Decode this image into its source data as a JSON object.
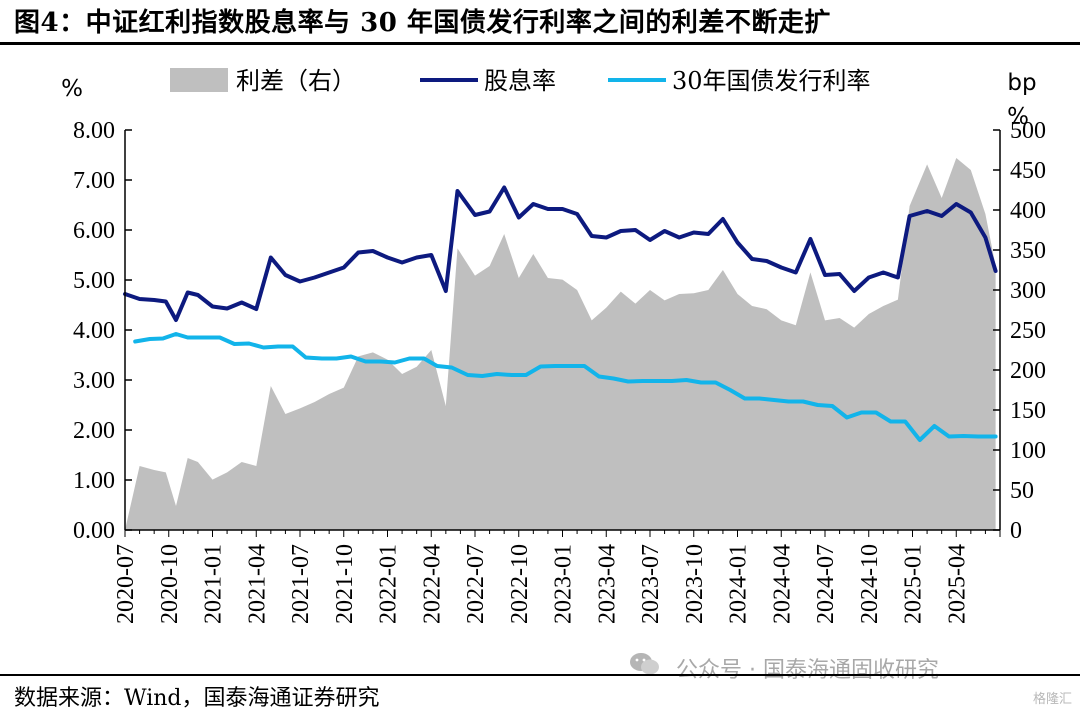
{
  "title": "图4：中证红利指数股息率与 30 年国债发行利率之间的利差不断走扩",
  "source": "数据来源：Wind，国泰海通证券研究",
  "watermark": "公众号 · 国泰海通固收研究",
  "corner_mark": "格隆汇",
  "colors": {
    "spread_fill": "#bfbfbf",
    "dividend_line": "#0d1a7f",
    "bond_line": "#12b4ea",
    "axis": "#000000"
  },
  "chart_data": {
    "type": "line",
    "left_unit": "%",
    "right_unit": "bp",
    "right_unit_sub": "%",
    "ylim_left": [
      0,
      8
    ],
    "ylim_right": [
      0,
      500
    ],
    "yticks_left": [
      "0.00",
      "1.00",
      "2.00",
      "3.00",
      "4.00",
      "5.00",
      "6.00",
      "7.00",
      "8.00"
    ],
    "yticks_right": [
      "0",
      "50",
      "100",
      "150",
      "200",
      "250",
      "300",
      "350",
      "400",
      "450",
      "500"
    ],
    "xtick_labels": [
      "2020-07",
      "2020-10",
      "2021-01",
      "2021-04",
      "2021-07",
      "2021-10",
      "2022-01",
      "2022-04",
      "2022-07",
      "2022-10",
      "2023-01",
      "2023-04",
      "2023-07",
      "2023-10",
      "2024-01",
      "2024-04",
      "2024-07",
      "2024-10",
      "2025-01",
      "2025-04"
    ],
    "legend": [
      "利差（右）",
      "股息率",
      "30年国债发行利率"
    ],
    "series": [
      {
        "name": "股息率",
        "axis": "left",
        "points": [
          [
            0.0,
            4.72
          ],
          [
            1.0,
            4.62
          ],
          [
            2.0,
            4.6
          ],
          [
            2.8,
            4.57
          ],
          [
            3.5,
            4.2
          ],
          [
            4.3,
            4.75
          ],
          [
            5.0,
            4.7
          ],
          [
            6.0,
            4.47
          ],
          [
            7.0,
            4.43
          ],
          [
            8.0,
            4.55
          ],
          [
            9.0,
            4.42
          ],
          [
            10.0,
            5.45
          ],
          [
            11.0,
            5.1
          ],
          [
            12.0,
            4.97
          ],
          [
            13.0,
            5.05
          ],
          [
            14.0,
            5.15
          ],
          [
            15.0,
            5.25
          ],
          [
            16.0,
            5.55
          ],
          [
            17.0,
            5.58
          ],
          [
            18.0,
            5.45
          ],
          [
            19.0,
            5.35
          ],
          [
            20.0,
            5.45
          ],
          [
            21.0,
            5.5
          ],
          [
            22.0,
            4.78
          ],
          [
            22.8,
            6.78
          ],
          [
            24.0,
            6.3
          ],
          [
            25.0,
            6.37
          ],
          [
            26.0,
            6.85
          ],
          [
            27.0,
            6.25
          ],
          [
            28.0,
            6.52
          ],
          [
            29.0,
            6.42
          ],
          [
            30.0,
            6.42
          ],
          [
            31.0,
            6.32
          ],
          [
            32.0,
            5.88
          ],
          [
            33.0,
            5.85
          ],
          [
            34.0,
            5.98
          ],
          [
            35.0,
            6.0
          ],
          [
            36.0,
            5.8
          ],
          [
            37.0,
            5.98
          ],
          [
            38.0,
            5.85
          ],
          [
            39.0,
            5.95
          ],
          [
            40.0,
            5.92
          ],
          [
            41.0,
            6.22
          ],
          [
            42.0,
            5.75
          ],
          [
            43.0,
            5.42
          ],
          [
            44.0,
            5.38
          ],
          [
            45.0,
            5.25
          ],
          [
            46.0,
            5.15
          ],
          [
            47.0,
            5.82
          ],
          [
            48.0,
            5.1
          ],
          [
            49.0,
            5.12
          ],
          [
            50.0,
            4.78
          ],
          [
            51.0,
            5.05
          ],
          [
            52.0,
            5.15
          ],
          [
            53.0,
            5.05
          ],
          [
            53.8,
            6.28
          ],
          [
            55.0,
            6.38
          ],
          [
            56.0,
            6.28
          ],
          [
            57.0,
            6.52
          ],
          [
            58.0,
            6.35
          ],
          [
            59.0,
            5.85
          ],
          [
            59.7,
            5.18
          ]
        ]
      },
      {
        "name": "30年国债发行利率",
        "axis": "left",
        "points": [
          [
            0.7,
            3.77
          ],
          [
            1.7,
            3.82
          ],
          [
            2.6,
            3.83
          ],
          [
            3.5,
            3.92
          ],
          [
            4.3,
            3.85
          ],
          [
            5.3,
            3.85
          ],
          [
            6.5,
            3.85
          ],
          [
            7.5,
            3.72
          ],
          [
            8.5,
            3.73
          ],
          [
            9.5,
            3.65
          ],
          [
            10.5,
            3.67
          ],
          [
            11.5,
            3.67
          ],
          [
            12.4,
            3.45
          ],
          [
            13.5,
            3.43
          ],
          [
            14.5,
            3.43
          ],
          [
            15.5,
            3.47
          ],
          [
            16.5,
            3.37
          ],
          [
            17.5,
            3.37
          ],
          [
            18.5,
            3.35
          ],
          [
            19.5,
            3.43
          ],
          [
            20.5,
            3.43
          ],
          [
            21.4,
            3.28
          ],
          [
            22.4,
            3.25
          ],
          [
            23.5,
            3.1
          ],
          [
            24.5,
            3.08
          ],
          [
            25.5,
            3.12
          ],
          [
            26.5,
            3.1
          ],
          [
            27.5,
            3.1
          ],
          [
            28.5,
            3.27
          ],
          [
            29.5,
            3.28
          ],
          [
            30.5,
            3.28
          ],
          [
            31.5,
            3.28
          ],
          [
            32.5,
            3.07
          ],
          [
            33.5,
            3.03
          ],
          [
            34.5,
            2.97
          ],
          [
            35.5,
            2.98
          ],
          [
            36.5,
            2.98
          ],
          [
            37.5,
            2.98
          ],
          [
            38.5,
            3.0
          ],
          [
            39.5,
            2.95
          ],
          [
            40.5,
            2.95
          ],
          [
            41.5,
            2.8
          ],
          [
            42.5,
            2.63
          ],
          [
            43.5,
            2.63
          ],
          [
            44.5,
            2.6
          ],
          [
            45.5,
            2.57
          ],
          [
            46.5,
            2.57
          ],
          [
            47.5,
            2.5
          ],
          [
            48.5,
            2.48
          ],
          [
            49.5,
            2.25
          ],
          [
            50.5,
            2.35
          ],
          [
            51.5,
            2.35
          ],
          [
            52.5,
            2.17
          ],
          [
            53.5,
            2.17
          ],
          [
            54.5,
            1.8
          ],
          [
            55.5,
            2.08
          ],
          [
            56.5,
            1.87
          ],
          [
            57.5,
            1.88
          ],
          [
            58.5,
            1.87
          ],
          [
            59.7,
            1.87
          ]
        ]
      },
      {
        "name": "利差（右）",
        "axis": "right",
        "points": [
          [
            0.0,
            0
          ],
          [
            1.0,
            80
          ],
          [
            2.0,
            75
          ],
          [
            2.8,
            72
          ],
          [
            3.5,
            30
          ],
          [
            4.3,
            90
          ],
          [
            5.0,
            85
          ],
          [
            6.0,
            63
          ],
          [
            7.0,
            72
          ],
          [
            8.0,
            85
          ],
          [
            9.0,
            80
          ],
          [
            10.0,
            180
          ],
          [
            11.0,
            145
          ],
          [
            12.0,
            152
          ],
          [
            13.0,
            160
          ],
          [
            14.0,
            170
          ],
          [
            15.0,
            178
          ],
          [
            16.0,
            217
          ],
          [
            17.0,
            222
          ],
          [
            18.0,
            213
          ],
          [
            19.0,
            195
          ],
          [
            20.0,
            204
          ],
          [
            21.0,
            225
          ],
          [
            22.0,
            155
          ],
          [
            22.8,
            352
          ],
          [
            24.0,
            318
          ],
          [
            25.0,
            330
          ],
          [
            26.0,
            370
          ],
          [
            27.0,
            315
          ],
          [
            28.0,
            345
          ],
          [
            29.0,
            315
          ],
          [
            30.0,
            313
          ],
          [
            31.0,
            300
          ],
          [
            32.0,
            262
          ],
          [
            33.0,
            278
          ],
          [
            34.0,
            298
          ],
          [
            35.0,
            283
          ],
          [
            36.0,
            300
          ],
          [
            37.0,
            287
          ],
          [
            38.0,
            295
          ],
          [
            39.0,
            296
          ],
          [
            40.0,
            300
          ],
          [
            41.0,
            325
          ],
          [
            42.0,
            295
          ],
          [
            43.0,
            280
          ],
          [
            44.0,
            276
          ],
          [
            45.0,
            262
          ],
          [
            46.0,
            256
          ],
          [
            47.0,
            322
          ],
          [
            48.0,
            262
          ],
          [
            49.0,
            265
          ],
          [
            50.0,
            253
          ],
          [
            51.0,
            270
          ],
          [
            52.0,
            280
          ],
          [
            53.0,
            288
          ],
          [
            53.8,
            405
          ],
          [
            55.0,
            457
          ],
          [
            56.0,
            415
          ],
          [
            57.0,
            465
          ],
          [
            58.0,
            450
          ],
          [
            59.0,
            395
          ],
          [
            59.7,
            330
          ]
        ]
      }
    ]
  }
}
